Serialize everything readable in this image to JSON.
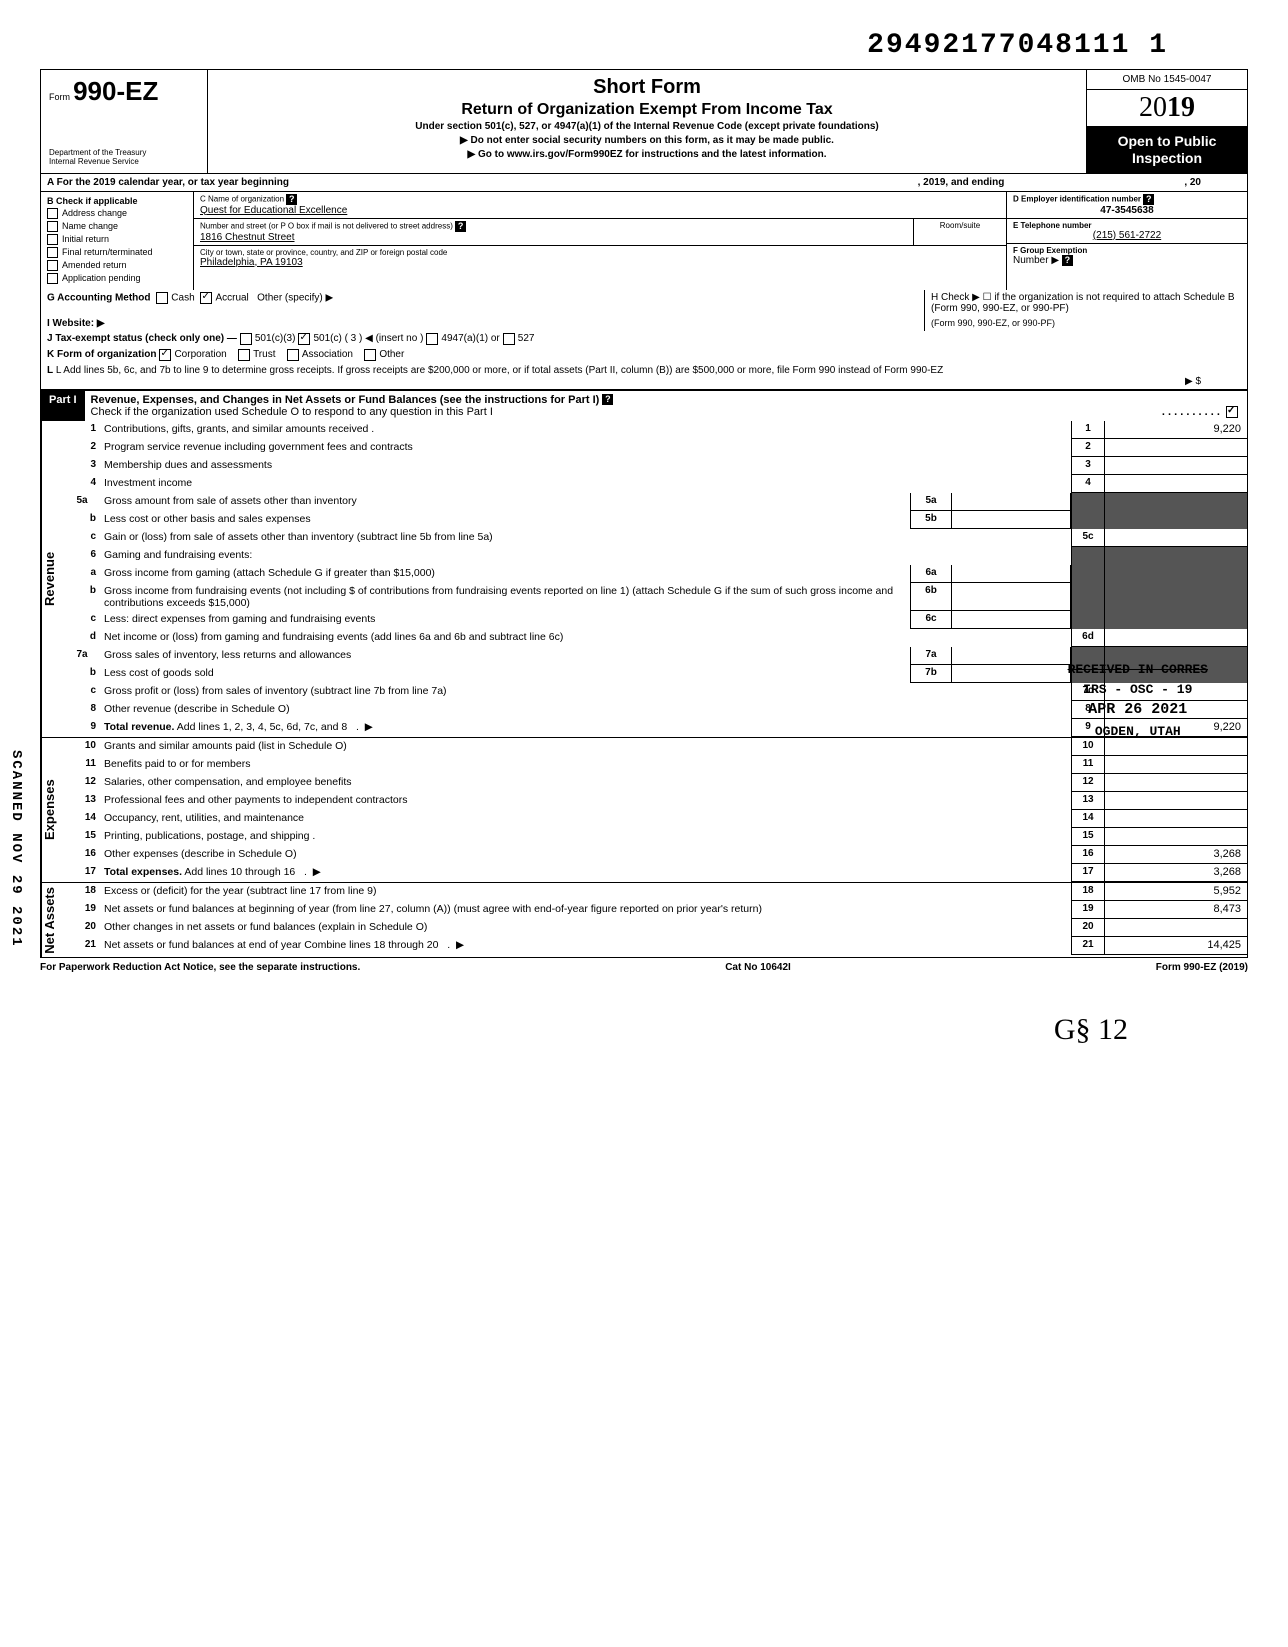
{
  "top_id": "29492177048111 1",
  "header": {
    "form_prefix": "Form",
    "form_number": "990-EZ",
    "dept1": "Department of the Treasury",
    "dept2": "Internal Revenue Service",
    "title1": "Short Form",
    "title2": "Return of Organization Exempt From Income Tax",
    "subtitle": "Under section 501(c), 527, or 4947(a)(1) of the Internal Revenue Code (except private foundations)",
    "arrow1": "▶ Do not enter social security numbers on this form, as it may be made public.",
    "arrow2": "▶ Go to www.irs.gov/Form990EZ for instructions and the latest information.",
    "omb": "OMB No 1545-0047",
    "year_prefix": "20",
    "year_bold": "19",
    "open": "Open to Public Inspection"
  },
  "row_a": {
    "label": "A For the 2019 calendar year, or tax year beginning",
    "mid": ", 2019, and ending",
    "end": ", 20"
  },
  "col_b": {
    "label": "B Check if applicable",
    "items": [
      "Address change",
      "Name change",
      "Initial return",
      "Final return/terminated",
      "Amended return",
      "Application pending"
    ]
  },
  "col_c": {
    "name_label": "C Name of organization",
    "name": "Quest for Educational Excellence",
    "addr_label": "Number and street (or P O box if mail is not delivered to street address)",
    "room_label": "Room/suite",
    "addr": "1816 Chestnut Street",
    "city_label": "City or town, state or province, country, and ZIP or foreign postal code",
    "city": "Philadelphia, PA 19103"
  },
  "col_d": {
    "ein_label": "D Employer identification number",
    "ein": "47-3545638",
    "tel_label": "E Telephone number",
    "tel": "(215) 561-2722",
    "grp_label": "F Group Exemption",
    "grp2": "Number ▶"
  },
  "row_g": "G Accounting Method",
  "g_opts": [
    "Cash",
    "Accrual",
    "Other (specify) ▶"
  ],
  "row_h": "H Check ▶ ☐ if the organization is not required to attach Schedule B (Form 990, 990-EZ, or 990-PF)",
  "row_i": "I Website: ▶",
  "row_j": "J Tax-exempt status (check only one) —",
  "j_opts": [
    "501(c)(3)",
    "501(c) ( 3 ) ◀ (insert no )",
    "4947(a)(1) or",
    "527"
  ],
  "row_k": "K Form of organization",
  "k_opts": [
    "Corporation",
    "Trust",
    "Association",
    "Other"
  ],
  "row_l": "L Add lines 5b, 6c, and 7b to line 9 to determine gross receipts. If gross receipts are $200,000 or more, or if total assets (Part II, column (B)) are $500,000 or more, file Form 990 instead of Form 990-EZ",
  "l_arrow": "▶  $",
  "part1": {
    "label": "Part I",
    "title": "Revenue, Expenses, and Changes in Net Assets or Fund Balances (see the instructions for Part I)",
    "check_line": "Check if the organization used Schedule O to respond to any question in this Part I"
  },
  "sections": {
    "revenue": "Revenue",
    "expenses": "Expenses",
    "netassets": "Net Assets"
  },
  "lines": [
    {
      "n": "1",
      "t": "Contributions, gifts, grants, and similar amounts received .",
      "rn": "1",
      "rv": "9,220"
    },
    {
      "n": "2",
      "t": "Program service revenue including government fees and contracts",
      "rn": "2",
      "rv": ""
    },
    {
      "n": "3",
      "t": "Membership dues and assessments",
      "rn": "3",
      "rv": ""
    },
    {
      "n": "4",
      "t": "Investment income",
      "rn": "4",
      "rv": ""
    },
    {
      "n": "5a",
      "t": "Gross amount from sale of assets other than inventory",
      "mb": "5a",
      "shade": true
    },
    {
      "n": "b",
      "t": "Less cost or other basis and sales expenses",
      "mb": "5b",
      "shade": true
    },
    {
      "n": "c",
      "t": "Gain or (loss) from sale of assets other than inventory (subtract line 5b from line 5a)",
      "rn": "5c",
      "rv": ""
    },
    {
      "n": "6",
      "t": "Gaming and fundraising events:",
      "shade": true,
      "noboxes": true
    },
    {
      "n": "a",
      "t": "Gross income from gaming (attach Schedule G if greater than $15,000)",
      "mb": "6a",
      "shade": true
    },
    {
      "n": "b",
      "t": "Gross income from fundraising events (not including $                    of contributions from fundraising events reported on line 1) (attach Schedule G if the sum of such gross income and contributions exceeds $15,000)",
      "mb": "6b",
      "shade": true
    },
    {
      "n": "c",
      "t": "Less: direct expenses from gaming and fundraising events",
      "mb": "6c",
      "shade": true
    },
    {
      "n": "d",
      "t": "Net income or (loss) from gaming and fundraising events (add lines 6a and 6b and subtract line 6c)",
      "rn": "6d",
      "rv": ""
    },
    {
      "n": "7a",
      "t": "Gross sales of inventory, less returns and allowances",
      "mb": "7a",
      "shade": true
    },
    {
      "n": "b",
      "t": "Less cost of goods sold",
      "mb": "7b",
      "shade": true
    },
    {
      "n": "c",
      "t": "Gross profit or (loss) from sales of inventory (subtract line 7b from line 7a)",
      "rn": "7c",
      "rv": ""
    },
    {
      "n": "8",
      "t": "Other revenue (describe in Schedule O)",
      "rn": "8",
      "rv": ""
    },
    {
      "n": "9",
      "t": "Total revenue. Add lines 1, 2, 3, 4, 5c, 6d, 7c, and 8",
      "rn": "9",
      "rv": "9,220",
      "bold": true,
      "arrow": true
    }
  ],
  "exp_lines": [
    {
      "n": "10",
      "t": "Grants and similar amounts paid (list in Schedule O)",
      "rn": "10",
      "rv": ""
    },
    {
      "n": "11",
      "t": "Benefits paid to or for members",
      "rn": "11",
      "rv": ""
    },
    {
      "n": "12",
      "t": "Salaries, other compensation, and employee benefits",
      "rn": "12",
      "rv": ""
    },
    {
      "n": "13",
      "t": "Professional fees and other payments to independent contractors",
      "rn": "13",
      "rv": ""
    },
    {
      "n": "14",
      "t": "Occupancy, rent, utilities, and maintenance",
      "rn": "14",
      "rv": ""
    },
    {
      "n": "15",
      "t": "Printing, publications, postage, and shipping .",
      "rn": "15",
      "rv": ""
    },
    {
      "n": "16",
      "t": "Other expenses (describe in Schedule O)",
      "rn": "16",
      "rv": "3,268"
    },
    {
      "n": "17",
      "t": "Total expenses. Add lines 10 through 16",
      "rn": "17",
      "rv": "3,268",
      "bold": true,
      "arrow": true
    }
  ],
  "na_lines": [
    {
      "n": "18",
      "t": "Excess or (deficit) for the year (subtract line 17 from line 9)",
      "rn": "18",
      "rv": "5,952"
    },
    {
      "n": "19",
      "t": "Net assets or fund balances at beginning of year (from line 27, column (A)) (must agree with end-of-year figure reported on prior year's return)",
      "rn": "19",
      "rv": "8,473"
    },
    {
      "n": "20",
      "t": "Other changes in net assets or fund balances (explain in Schedule O)",
      "rn": "20",
      "rv": ""
    },
    {
      "n": "21",
      "t": "Net assets or fund balances at end of year Combine lines 18 through 20",
      "rn": "21",
      "rv": "14,425",
      "arrow": true
    }
  ],
  "footer": {
    "left": "For Paperwork Reduction Act Notice, see the separate instructions.",
    "mid": "Cat No 10642I",
    "right": "Form 990-EZ (2019)"
  },
  "stamp": {
    "l1": "RECEIVED IN CORRES",
    "l2": "IRS - OSC - 19",
    "l3": "APR 26 2021",
    "l4": "OGDEN, UTAH"
  },
  "scanned": "SCANNED  NOV 29 2021",
  "sig": "G§   12"
}
